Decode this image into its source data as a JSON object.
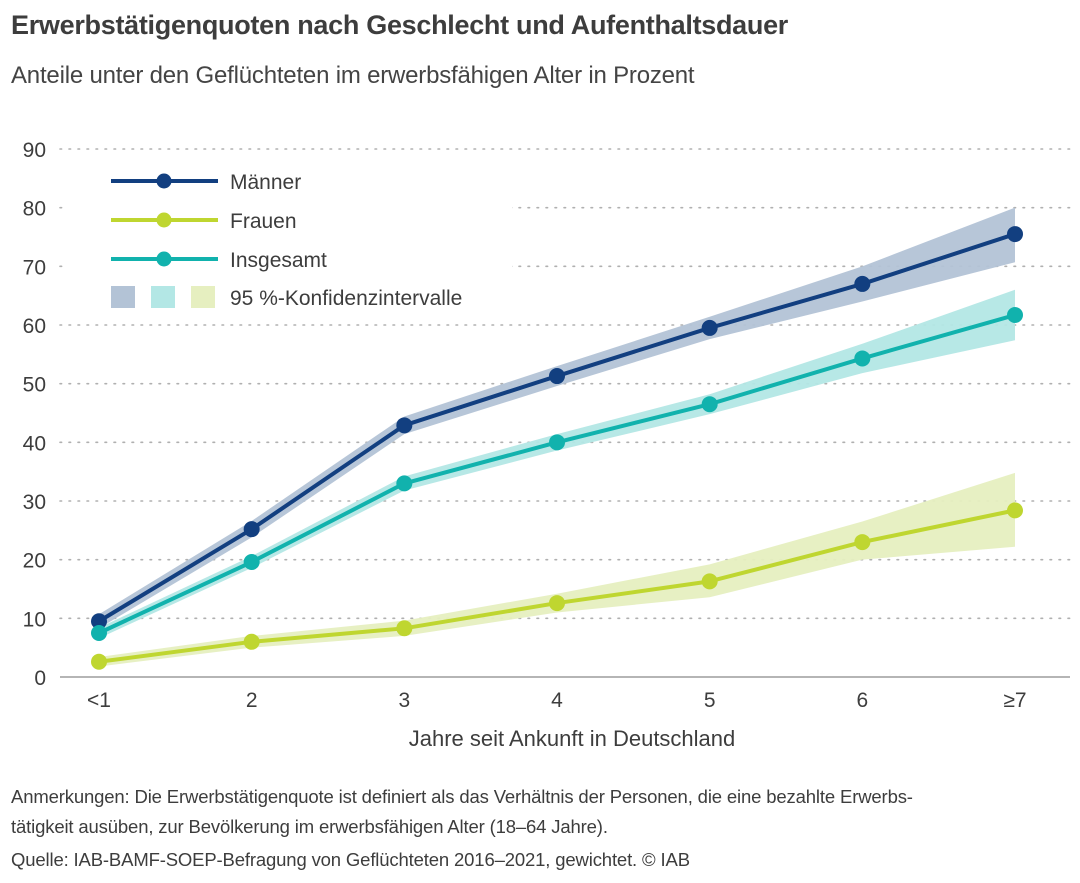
{
  "header": {
    "title": "Erwerbstätigenquoten nach Geschlecht und Aufenthaltsdauer",
    "subtitle": "Anteile unter den Geflüchteten im erwerbsfähigen Alter in Prozent"
  },
  "footer": {
    "note_line1": "Anmerkungen: Die Erwerbstätigenquote ist definiert als das Verhältnis der Personen, die eine bezahlte Erwerbs-",
    "note_line2": "tätigkeit ausüben, zur Bevölkerung im erwerbsfähigen Alter (18–64 Jahre).",
    "source": "Quelle: IAB-BAMF-SOEP-Befragung von Geflüchteten 2016–2021, gewichtet.  © IAB"
  },
  "chart_data": {
    "type": "line",
    "title": "Erwerbstätigenquoten nach Geschlecht und Aufenthaltsdauer",
    "subtitle": "Anteile unter den Geflüchteten im erwerbsfähigen Alter in Prozent",
    "xlabel": "Jahre seit Ankunft in Deutschland",
    "ylabel": "",
    "categories": [
      "<1",
      "2",
      "3",
      "4",
      "5",
      "6",
      "≥7"
    ],
    "ylim": [
      0,
      90
    ],
    "yticks": [
      0,
      10,
      20,
      30,
      40,
      50,
      60,
      70,
      80,
      90
    ],
    "grid": "horizontal dotted",
    "legend_position": "top-left",
    "series": [
      {
        "name": "Männer",
        "color": "#123f80",
        "band_color": "#b3c3d6",
        "values": [
          9.5,
          25.2,
          42.9,
          51.3,
          59.5,
          67.0,
          75.5
        ],
        "ci_lower": [
          8.3,
          23.8,
          41.4,
          49.6,
          57.6,
          64.0,
          70.7
        ],
        "ci_upper": [
          10.7,
          26.6,
          44.4,
          53.0,
          61.4,
          70.0,
          80.0
        ]
      },
      {
        "name": "Frauen",
        "color": "#bfd630",
        "band_color": "#e6efc0",
        "values": [
          2.6,
          6.0,
          8.3,
          12.6,
          16.3,
          23.0,
          28.4
        ],
        "ci_lower": [
          1.8,
          5.0,
          7.0,
          11.0,
          13.6,
          20.0,
          22.2
        ],
        "ci_upper": [
          3.4,
          7.0,
          9.6,
          14.2,
          19.2,
          26.5,
          34.8
        ]
      },
      {
        "name": "Insgesamt",
        "color": "#11b2ad",
        "band_color": "#b3e7e5",
        "values": [
          7.5,
          19.6,
          33.0,
          40.0,
          46.5,
          54.3,
          61.7
        ],
        "ci_lower": [
          6.6,
          18.6,
          31.8,
          38.6,
          44.8,
          51.8,
          57.4
        ],
        "ci_upper": [
          8.4,
          20.6,
          34.2,
          41.4,
          48.2,
          56.8,
          66.0
        ]
      }
    ],
    "legend": {
      "entries": [
        "Männer",
        "Frauen",
        "Insgesamt"
      ],
      "ci_label": "95 %-Konfidenzintervalle"
    }
  }
}
